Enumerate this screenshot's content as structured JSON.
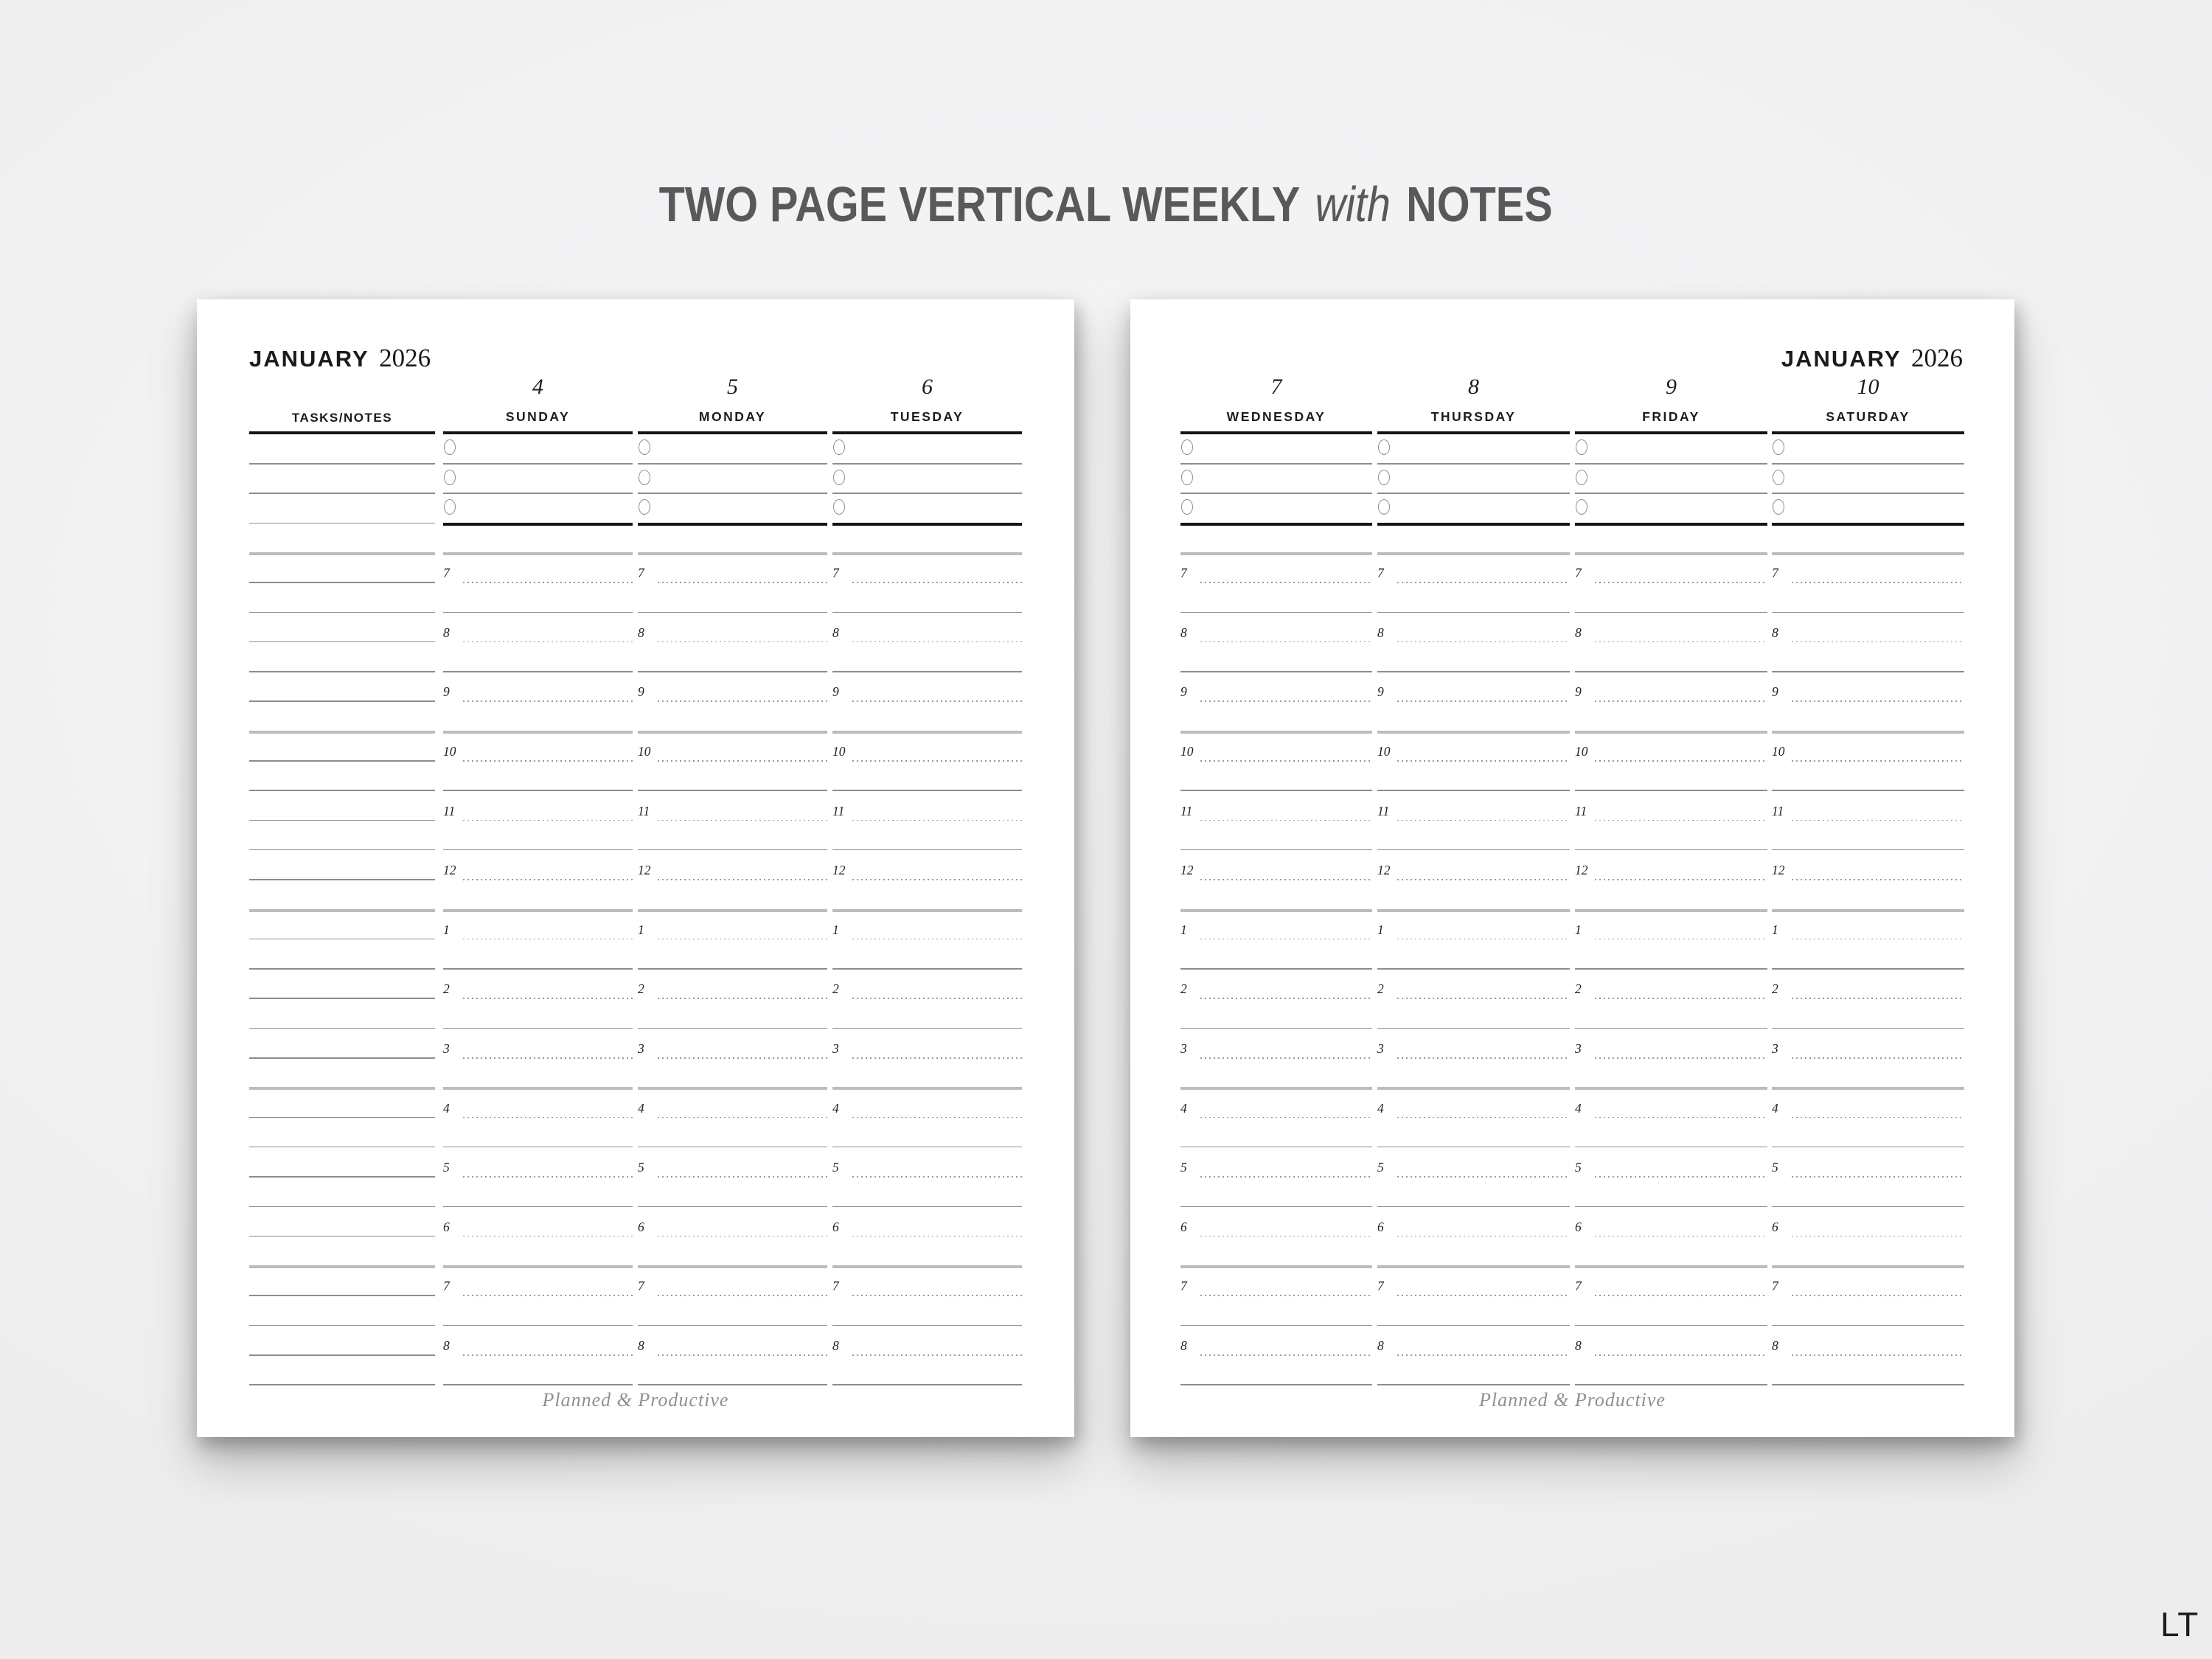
{
  "title": {
    "main": "TWO PAGE VERTICAL WEEKLY",
    "emphasis": "with",
    "suffix": "NOTES"
  },
  "brand_script": "Planned & Productive",
  "watermark": "LT",
  "hours": [
    "7",
    "8",
    "9",
    "10",
    "11",
    "12",
    "1",
    "2",
    "3",
    "4",
    "5",
    "6",
    "7",
    "8"
  ],
  "checkbox_rows_per_day": 3,
  "pages": {
    "left": {
      "month": "JANUARY",
      "year": "2026",
      "tasks_header": "TASKS/NOTES",
      "days": [
        {
          "date": "4",
          "name": "SUNDAY"
        },
        {
          "date": "5",
          "name": "MONDAY"
        },
        {
          "date": "6",
          "name": "TUESDAY"
        }
      ]
    },
    "right": {
      "month": "JANUARY",
      "year": "2026",
      "days": [
        {
          "date": "7",
          "name": "WEDNESDAY"
        },
        {
          "date": "8",
          "name": "THURSDAY"
        },
        {
          "date": "9",
          "name": "FRIDAY"
        },
        {
          "date": "10",
          "name": "SATURDAY"
        }
      ]
    }
  },
  "colors": {
    "background": "#f2f2f3",
    "page": "#ffffff",
    "ink": "#1b1b1b",
    "title_gray": "#58595b",
    "rule": "#8d8d8d",
    "rule_light": "#bcbcbc",
    "dotted": "#9a9a9a",
    "script": "#909090"
  }
}
